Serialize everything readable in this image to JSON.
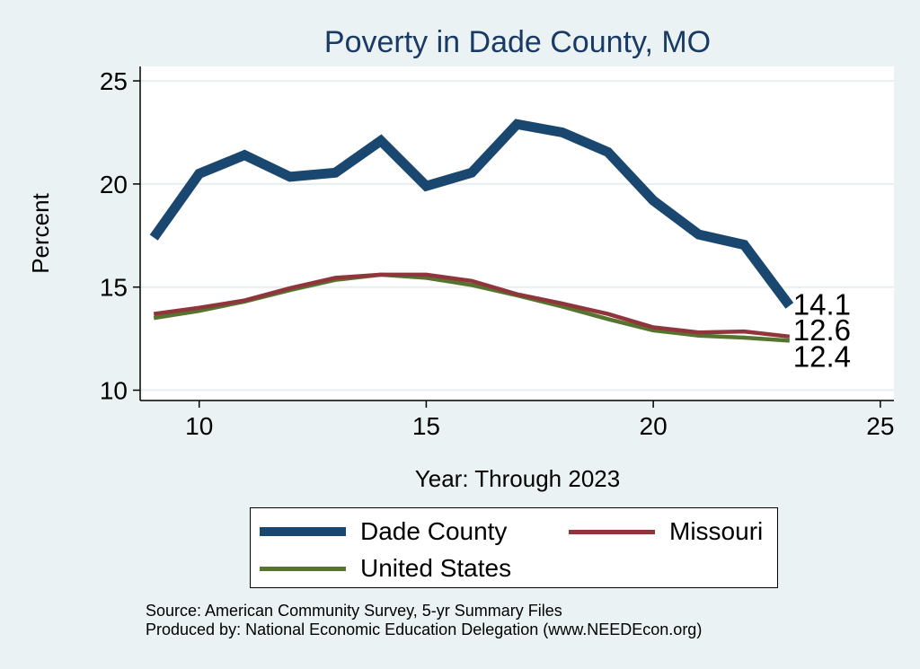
{
  "chart_data": {
    "type": "line",
    "title": "Poverty in Dade County, MO",
    "xlabel": "Year: Through 2023",
    "ylabel": "Percent",
    "xlim": [
      8.7,
      25.3
    ],
    "ylim": [
      9.5,
      25.7
    ],
    "xticks": [
      10,
      15,
      20,
      25
    ],
    "yticks": [
      10,
      15,
      20,
      25
    ],
    "grid": true,
    "legend_position": "bottom",
    "series": [
      {
        "name": "Dade County",
        "color": "#1a476f",
        "x": [
          9,
          10,
          11,
          12,
          13,
          14,
          15,
          16,
          17,
          18,
          19,
          20,
          21,
          22,
          23
        ],
        "values": [
          17.4,
          20.5,
          21.4,
          20.35,
          20.55,
          22.1,
          19.9,
          20.55,
          22.9,
          22.5,
          21.55,
          19.2,
          17.55,
          17.05,
          14.1
        ],
        "end_label": "14.1"
      },
      {
        "name": "Missouri",
        "color": "#90353b",
        "x": [
          9,
          10,
          11,
          12,
          13,
          14,
          15,
          16,
          17,
          18,
          19,
          20,
          21,
          22,
          23
        ],
        "values": [
          13.7,
          14.0,
          14.35,
          14.95,
          15.45,
          15.6,
          15.6,
          15.3,
          14.65,
          14.2,
          13.7,
          13.05,
          12.8,
          12.85,
          12.6
        ],
        "end_label": "12.6"
      },
      {
        "name": "United States",
        "color": "#55752f",
        "x": [
          9,
          10,
          11,
          12,
          13,
          14,
          15,
          16,
          17,
          18,
          19,
          20,
          21,
          22,
          23
        ],
        "values": [
          13.5,
          13.85,
          14.3,
          14.85,
          15.35,
          15.6,
          15.45,
          15.1,
          14.6,
          14.05,
          13.45,
          12.9,
          12.65,
          12.55,
          12.4
        ],
        "end_label": "12.4"
      }
    ]
  },
  "legend": {
    "items": [
      {
        "label": "Dade County",
        "color": "#1a476f"
      },
      {
        "label": "Missouri",
        "color": "#90353b"
      },
      {
        "label": "United States",
        "color": "#55752f"
      }
    ]
  },
  "footer": {
    "source": "Source: American Community Survey, 5-yr Summary Files",
    "producer": "Produced by: National Economic Education Delegation (www.NEEDEcon.org)"
  }
}
